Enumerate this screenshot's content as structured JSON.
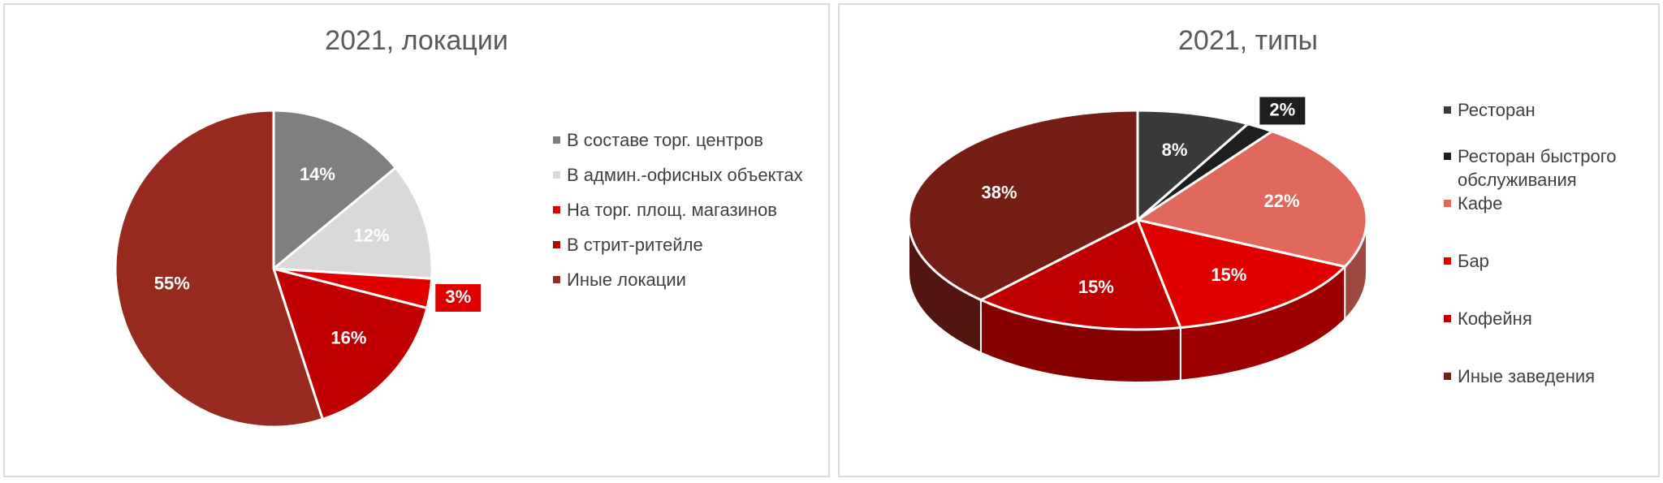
{
  "chart_data": [
    {
      "type": "pie",
      "title": "2021, локации",
      "categories": [
        "В составе торг. центров",
        "В админ.-офисных объектах",
        "На торг. площ. магазинов",
        "В стрит-ритейле",
        "Иные локации"
      ],
      "values": [
        14,
        12,
        3,
        16,
        55
      ],
      "value_labels": [
        "14%",
        "12%",
        "3%",
        "16%",
        "55%"
      ],
      "colors": [
        "#7f7f7f",
        "#d9d9d9",
        "#e00000",
        "#c00000",
        "#962a1e"
      ],
      "legend": "right"
    },
    {
      "type": "pie3d",
      "title": "2021, типы",
      "categories": [
        "Ресторан",
        "Ресторан быстрого обслуживания",
        "Кафе",
        "Бар",
        "Кофейня",
        "Иные заведения"
      ],
      "values": [
        8,
        2,
        22,
        15,
        15,
        38
      ],
      "value_labels": [
        "8%",
        "2%",
        "22%",
        "15%",
        "15%",
        "38%"
      ],
      "colors": [
        "#3a3a3a",
        "#1e1e1e",
        "#e0685c",
        "#e00000",
        "#c00000",
        "#751e16"
      ],
      "legend": "right"
    }
  ]
}
